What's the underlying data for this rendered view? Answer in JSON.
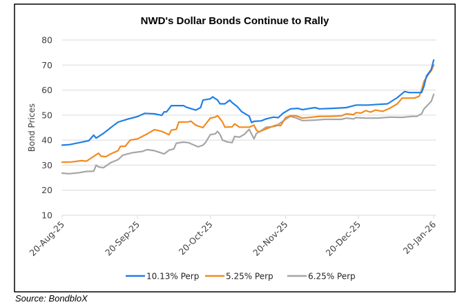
{
  "chart_data": {
    "type": "line",
    "title": "NWD's Dollar Bonds Continue to Rally",
    "xlabel": "",
    "ylabel": "Bond Prices",
    "ylim": [
      10,
      80
    ],
    "yticks": [
      10,
      20,
      30,
      40,
      50,
      60,
      70,
      80
    ],
    "x_start": "20-Aug-25",
    "x_end": "20-Jan-26",
    "xlim_days": [
      0,
      153
    ],
    "xticks": [
      {
        "label": "20-Aug-25",
        "day": 0
      },
      {
        "label": "20-Sep-25",
        "day": 31
      },
      {
        "label": "20-Oct-25",
        "day": 61
      },
      {
        "label": "20-Nov-25",
        "day": 92
      },
      {
        "label": "20-Dec-25",
        "day": 122
      },
      {
        "label": "20-Jan-26",
        "day": 153
      }
    ],
    "grid": true,
    "legend_position": "bottom",
    "x_unit": "days since 20-Aug-25",
    "series": [
      {
        "name": "10.13% Perp",
        "color": "#1F7FE5",
        "points": [
          [
            0,
            38.0
          ],
          [
            3,
            38.2
          ],
          [
            7,
            39.0
          ],
          [
            11,
            39.8
          ],
          [
            13,
            42.0
          ],
          [
            14,
            40.8
          ],
          [
            17,
            42.7
          ],
          [
            19,
            44.2
          ],
          [
            20,
            45.0
          ],
          [
            23,
            47.2
          ],
          [
            27,
            48.4
          ],
          [
            31,
            49.4
          ],
          [
            34,
            50.7
          ],
          [
            38,
            50.5
          ],
          [
            41,
            49.9
          ],
          [
            42,
            51.3
          ],
          [
            43,
            51.3
          ],
          [
            45,
            53.8
          ],
          [
            50,
            53.8
          ],
          [
            51,
            53.2
          ],
          [
            55,
            52.0
          ],
          [
            57,
            53.0
          ],
          [
            58,
            56.0
          ],
          [
            61,
            56.5
          ],
          [
            62,
            57.3
          ],
          [
            64,
            56.0
          ],
          [
            65,
            54.5
          ],
          [
            67,
            54.5
          ],
          [
            69,
            56.0
          ],
          [
            70,
            55.0
          ],
          [
            72,
            53.5
          ],
          [
            74,
            51.3
          ],
          [
            77,
            49.6
          ],
          [
            78,
            47.0
          ],
          [
            79,
            47.5
          ],
          [
            82,
            47.7
          ],
          [
            84,
            48.5
          ],
          [
            87,
            49.2
          ],
          [
            89,
            49.0
          ],
          [
            91,
            50.8
          ],
          [
            94,
            52.5
          ],
          [
            97,
            52.7
          ],
          [
            99,
            52.2
          ],
          [
            104,
            53.0
          ],
          [
            106,
            52.5
          ],
          [
            111,
            52.7
          ],
          [
            117,
            53.0
          ],
          [
            121,
            54.0
          ],
          [
            126,
            54.0
          ],
          [
            130,
            54.3
          ],
          [
            134,
            54.5
          ],
          [
            138,
            57.0
          ],
          [
            141,
            59.4
          ],
          [
            143,
            59.0
          ],
          [
            148,
            59.0
          ],
          [
            149,
            61.5
          ],
          [
            150,
            65.6
          ],
          [
            152,
            68.3
          ],
          [
            153,
            72.0
          ]
        ]
      },
      {
        "name": "5.25% Perp",
        "color": "#F28A1E",
        "points": [
          [
            0,
            31.2
          ],
          [
            4,
            31.3
          ],
          [
            8,
            31.8
          ],
          [
            10,
            31.6
          ],
          [
            13,
            33.5
          ],
          [
            15,
            34.8
          ],
          [
            16,
            33.6
          ],
          [
            18,
            33.4
          ],
          [
            20,
            34.5
          ],
          [
            23,
            35.8
          ],
          [
            24,
            37.5
          ],
          [
            26,
            37.6
          ],
          [
            28,
            40.0
          ],
          [
            31,
            40.5
          ],
          [
            35,
            42.5
          ],
          [
            38,
            44.2
          ],
          [
            41,
            43.5
          ],
          [
            44,
            42.2
          ],
          [
            45,
            44.0
          ],
          [
            47,
            44.3
          ],
          [
            48,
            47.2
          ],
          [
            52,
            47.3
          ],
          [
            53,
            47.6
          ],
          [
            55,
            46.0
          ],
          [
            58,
            45.0
          ],
          [
            61,
            48.8
          ],
          [
            63,
            49.2
          ],
          [
            64,
            49.8
          ],
          [
            66,
            47.3
          ],
          [
            67,
            45.2
          ],
          [
            70,
            45.3
          ],
          [
            71,
            46.5
          ],
          [
            73,
            45.2
          ],
          [
            77,
            45.2
          ],
          [
            79,
            46.0
          ],
          [
            80,
            44.0
          ],
          [
            81,
            43.3
          ],
          [
            84,
            44.5
          ],
          [
            88,
            46.0
          ],
          [
            90,
            45.8
          ],
          [
            92,
            49.0
          ],
          [
            94,
            49.8
          ],
          [
            96,
            49.8
          ],
          [
            99,
            48.8
          ],
          [
            103,
            49.2
          ],
          [
            106,
            49.5
          ],
          [
            110,
            49.5
          ],
          [
            115,
            49.7
          ],
          [
            117,
            50.5
          ],
          [
            120,
            50.2
          ],
          [
            121,
            51.0
          ],
          [
            123,
            50.8
          ],
          [
            125,
            51.8
          ],
          [
            127,
            51.2
          ],
          [
            129,
            52.0
          ],
          [
            132,
            51.5
          ],
          [
            135,
            52.8
          ],
          [
            138,
            54.5
          ],
          [
            140,
            56.8
          ],
          [
            145,
            56.8
          ],
          [
            147,
            57.5
          ],
          [
            148,
            60.0
          ],
          [
            149,
            63.5
          ],
          [
            151,
            66.5
          ],
          [
            152,
            67.7
          ],
          [
            153,
            70.0
          ]
        ]
      },
      {
        "name": "6.25% Perp",
        "color": "#A5A5A5",
        "points": [
          [
            0,
            26.8
          ],
          [
            3,
            26.6
          ],
          [
            7,
            27.0
          ],
          [
            10,
            27.5
          ],
          [
            13,
            27.6
          ],
          [
            14,
            30.0
          ],
          [
            15,
            29.3
          ],
          [
            17,
            29.0
          ],
          [
            20,
            31.0
          ],
          [
            23,
            32.2
          ],
          [
            25,
            34.0
          ],
          [
            29,
            35.0
          ],
          [
            33,
            35.5
          ],
          [
            35,
            36.2
          ],
          [
            38,
            35.8
          ],
          [
            42,
            34.5
          ],
          [
            44,
            36.0
          ],
          [
            46,
            36.5
          ],
          [
            47,
            38.8
          ],
          [
            50,
            39.2
          ],
          [
            52,
            39.0
          ],
          [
            56,
            37.3
          ],
          [
            58,
            38.0
          ],
          [
            59,
            39.0
          ],
          [
            61,
            42.2
          ],
          [
            63,
            42.5
          ],
          [
            64,
            43.5
          ],
          [
            65,
            42.3
          ],
          [
            66,
            40.0
          ],
          [
            68,
            39.3
          ],
          [
            70,
            39.0
          ],
          [
            71,
            41.5
          ],
          [
            73,
            41.2
          ],
          [
            75,
            42.3
          ],
          [
            77,
            44.3
          ],
          [
            79,
            40.5
          ],
          [
            80,
            42.7
          ],
          [
            82,
            43.8
          ],
          [
            84,
            45.2
          ],
          [
            86,
            45.3
          ],
          [
            88,
            45.6
          ],
          [
            92,
            48.3
          ],
          [
            94,
            49.5
          ],
          [
            96,
            49.0
          ],
          [
            99,
            47.8
          ],
          [
            104,
            48.0
          ],
          [
            108,
            48.3
          ],
          [
            115,
            48.3
          ],
          [
            117,
            48.8
          ],
          [
            120,
            48.5
          ],
          [
            121,
            49.0
          ],
          [
            125,
            48.8
          ],
          [
            130,
            48.8
          ],
          [
            135,
            49.2
          ],
          [
            140,
            49.1
          ],
          [
            144,
            49.5
          ],
          [
            146,
            49.5
          ],
          [
            148,
            50.5
          ],
          [
            149,
            52.5
          ],
          [
            151,
            54.5
          ],
          [
            152,
            55.5
          ],
          [
            153,
            58.3
          ]
        ]
      }
    ]
  },
  "source": "Source: BondbloX"
}
